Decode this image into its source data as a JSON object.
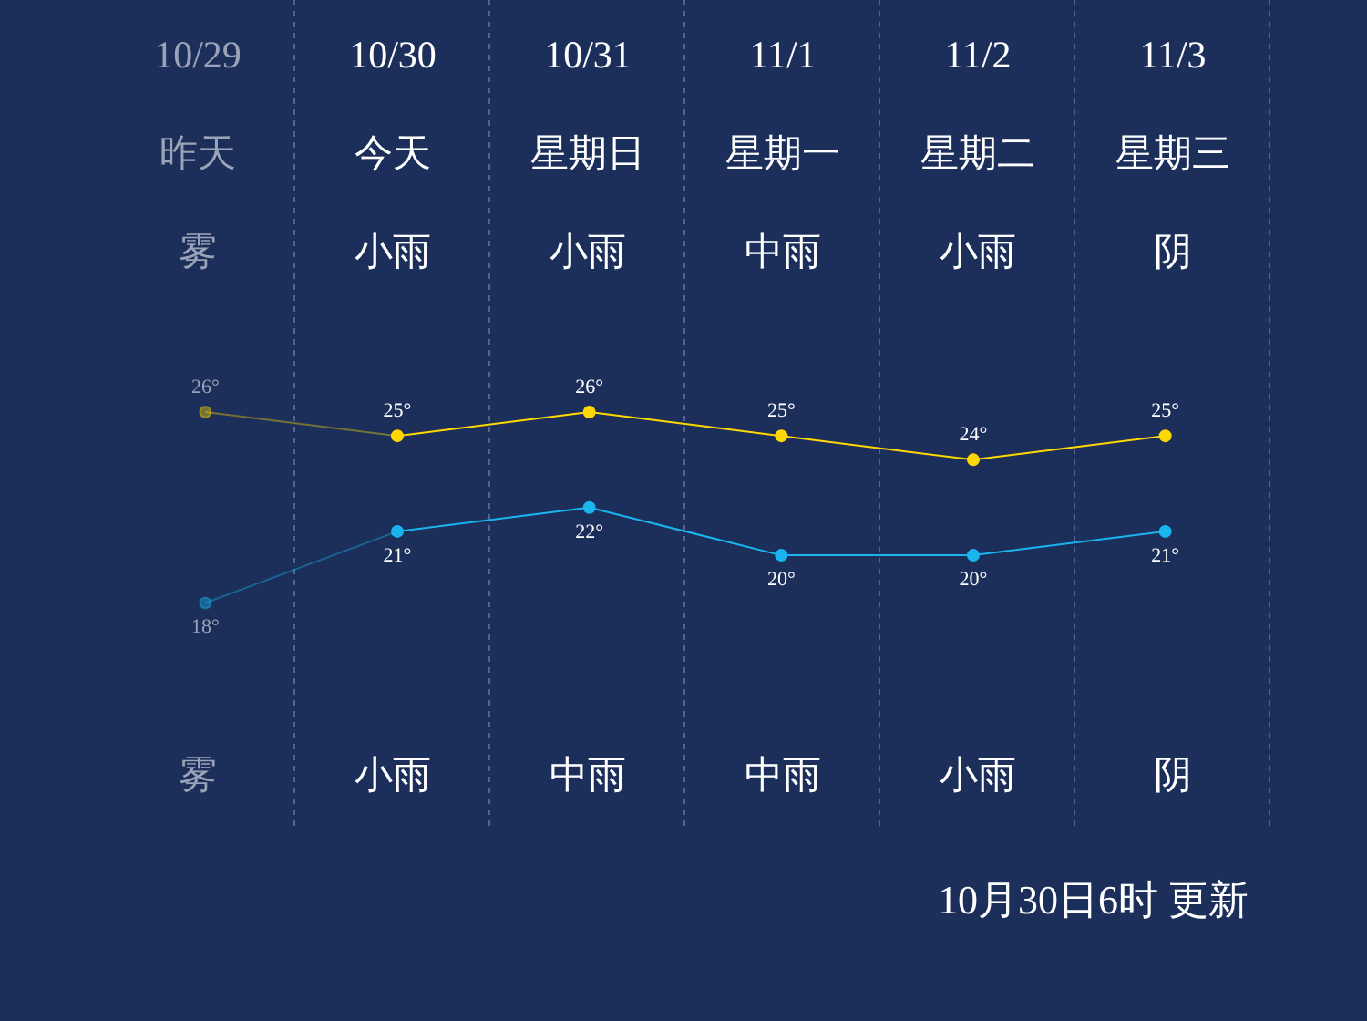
{
  "chart_data": {
    "type": "line",
    "categories": [
      "10/29",
      "10/30",
      "10/31",
      "11/1",
      "11/2",
      "11/3"
    ],
    "series": [
      {
        "color": "#ffd800",
        "values": [
          26,
          25,
          26,
          25,
          24,
          25
        ],
        "value_labels": [
          "26°",
          "25°",
          "26°",
          "25°",
          "24°",
          "25°"
        ]
      },
      {
        "color": "#1ab4ef",
        "values": [
          18,
          21,
          22,
          20,
          20,
          21
        ],
        "value_labels": [
          "18°",
          "21°",
          "22°",
          "20°",
          "20°",
          "21°"
        ]
      }
    ],
    "annotations": [
      "昨天",
      "今天",
      "星期日",
      "星期一",
      "星期二",
      "星期三",
      "雾",
      "小雨",
      "小雨",
      "中雨",
      "小雨",
      "阴",
      "雾",
      "小雨",
      "中雨",
      "中雨",
      "小雨",
      "阴",
      "10月30日6时 更新"
    ],
    "grid": "x",
    "marker": "circle",
    "line_style": "solid",
    "legend": false
  }
}
